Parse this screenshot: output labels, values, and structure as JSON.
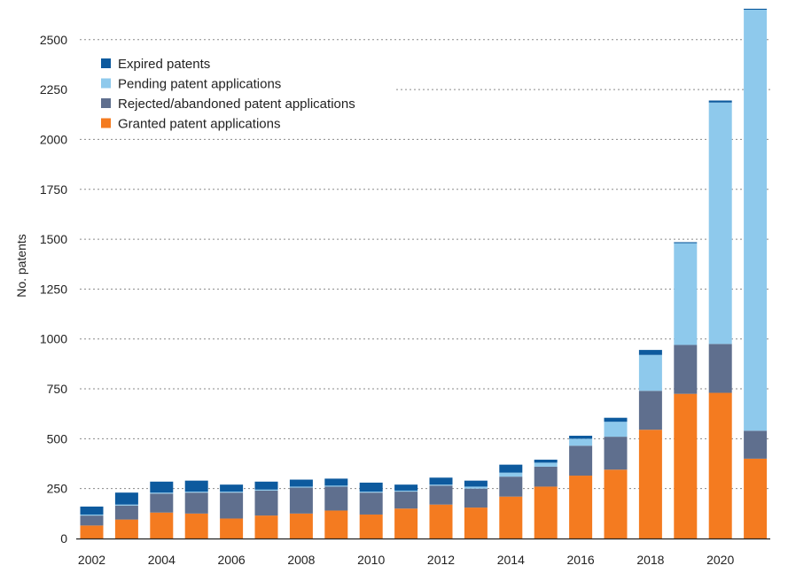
{
  "chart_data": {
    "type": "bar",
    "stacked": true,
    "title": "",
    "xlabel": "",
    "ylabel": "No. patents",
    "ylim": [
      0,
      2650
    ],
    "yticks": [
      0,
      250,
      500,
      750,
      1000,
      1250,
      1500,
      1750,
      2000,
      2250,
      2500
    ],
    "grid": true,
    "legend_position": "top-left",
    "categories": [
      2002,
      2003,
      2004,
      2005,
      2006,
      2007,
      2008,
      2009,
      2010,
      2011,
      2012,
      2013,
      2014,
      2015,
      2016,
      2017,
      2018,
      2019,
      2020,
      2021
    ],
    "xtick_labels": [
      "2002",
      "",
      "2004",
      "",
      "2006",
      "",
      "2008",
      "",
      "2010",
      "",
      "2012",
      "",
      "2014",
      "",
      "2016",
      "",
      "2018",
      "",
      "2020",
      ""
    ],
    "series": [
      {
        "name": "Granted patent applications",
        "color": "#f47b20",
        "values": [
          65,
          95,
          130,
          125,
          100,
          115,
          125,
          140,
          120,
          150,
          170,
          155,
          210,
          260,
          315,
          345,
          545,
          725,
          730,
          400
        ]
      },
      {
        "name": "Rejected/abandoned patent applications",
        "color": "#5f6f8e",
        "values": [
          50,
          70,
          95,
          105,
          130,
          125,
          130,
          120,
          110,
          85,
          95,
          95,
          100,
          100,
          150,
          165,
          195,
          245,
          245,
          140
        ]
      },
      {
        "name": "Pending patent applications",
        "color": "#8ec9ec",
        "values": [
          5,
          5,
          5,
          5,
          5,
          5,
          5,
          5,
          5,
          5,
          5,
          10,
          20,
          20,
          35,
          75,
          180,
          510,
          1210,
          2110
        ]
      },
      {
        "name": "Expired patents",
        "color": "#0d5a9e",
        "values": [
          40,
          60,
          55,
          55,
          35,
          40,
          35,
          35,
          45,
          30,
          35,
          30,
          40,
          15,
          15,
          20,
          25,
          5,
          10,
          5
        ]
      }
    ],
    "legend_order": [
      "Expired patents",
      "Pending patent applications",
      "Rejected/abandoned patent applications",
      "Granted patent applications"
    ]
  }
}
